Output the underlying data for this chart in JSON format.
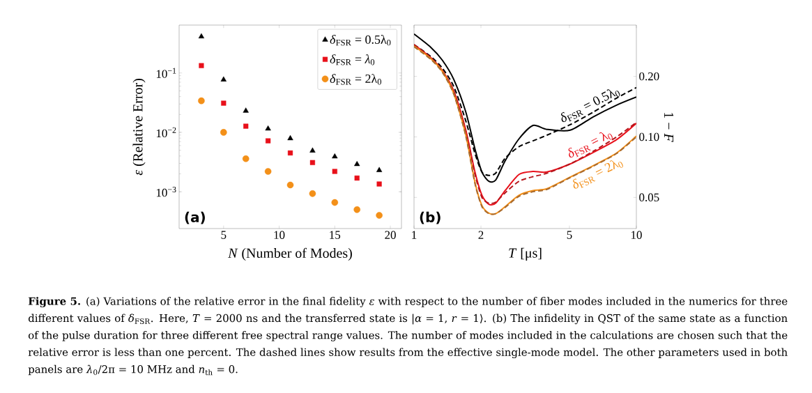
{
  "chart_data": [
    {
      "type": "scatter",
      "title": "(a)",
      "xlabel": "*N* (Number of Modes)",
      "ylabel": "*ε* (Relative Error)",
      "log": "y",
      "legend": "top right",
      "x": [
        3,
        5,
        7,
        9,
        11,
        13,
        15,
        17,
        19
      ],
      "xlim": [
        1,
        21
      ],
      "xticks": [
        5,
        10,
        15,
        20
      ],
      "ylim": [
        0.00024,
        0.64
      ],
      "yticks": [
        {
          "value": 0.001,
          "label": "10$^{−3}$"
        },
        {
          "value": 0.01,
          "label": "10$^{−2}$"
        },
        {
          "value": 0.1,
          "label": "10$^{−1}$"
        }
      ],
      "series": [
        {
          "name": "*δ*$_{FSR}$ = 0.5λ$_{0}$",
          "color": "#000000",
          "marker": "triangle",
          "values": [
            0.41,
            0.077,
            0.023,
            0.0115,
            0.0079,
            0.0049,
            0.0039,
            0.0029,
            0.0023
          ]
        },
        {
          "name": "*δ*$_{FSR}$ = *λ*$_{0}$",
          "color": "#e8101a",
          "marker": "square",
          "values": [
            0.133,
            0.031,
            0.0127,
            0.0072,
            0.0045,
            0.0031,
            0.0022,
            0.0017,
            0.00135
          ]
        },
        {
          "name": "*δ*$_{FSR}$ = 2λ$_{0}$",
          "color": "#f39019",
          "marker": "circle",
          "values": [
            0.034,
            0.01,
            0.0036,
            0.0022,
            0.0013,
            0.00093,
            0.00066,
            0.0005,
            0.0004
          ]
        }
      ],
      "annotations": [
        "**Figure 5.** (a) Variations of the relative error in the final fidelity *ε* with respect to the number of fiber modes included in the numerics for three different values of *δ*$_{FSR}$. Here, *T* = 2000 ns and the transferred state is |*α* = 1, *r* = 1⟩. (b) The infidelity in QST of the same state as a function of the pulse duration for three different free spectral range values. The number of modes included in the calculations are chosen such that the relative error is less than one percent. The dashed lines show results from the effective single-mode model. The other parameters used in both panels are *λ*$_{0}$/2π = 10 MHz and *n*$_{th}$ = 0."
      ]
    },
    {
      "type": "line",
      "title": "(b)",
      "xlabel": "*T* [μs]",
      "ylabel": "1 − *F*",
      "log": "xy",
      "x": [
        1,
        1.19,
        1.34,
        1.51,
        1.71,
        1.88,
        2.02,
        2.17,
        2.33,
        2.57,
        2.97,
        3.43,
        3.96,
        5.04,
        6.41,
        8.15,
        10
      ],
      "xlim": [
        1,
        10
      ],
      "xticks": [
        1,
        2,
        5,
        10
      ],
      "ylim": [
        0.035,
        0.36
      ],
      "yticks": [
        {
          "value": 0.05,
          "label": "0.05"
        },
        {
          "value": 0.1,
          "label": "0.10"
        },
        {
          "value": 0.2,
          "label": "0.20"
        }
      ],
      "series": [
        {
          "color": "#000000",
          "line_style": "solid",
          "values": [
            0.325,
            0.279,
            0.241,
            0.193,
            0.133,
            0.0871,
            0.0669,
            0.0602,
            0.061,
            0.076,
            0.098,
            0.114,
            0.109,
            0.108,
            0.126,
            0.144,
            0.158
          ]
        },
        {
          "color": "#000000",
          "line_style": "dashed",
          "values": [
            0.288,
            0.251,
            0.22,
            0.178,
            0.12,
            0.0827,
            0.0669,
            0.0643,
            0.066,
            0.0784,
            0.0895,
            0.0956,
            0.102,
            0.115,
            0.133,
            0.156,
            0.176
          ]
        },
        {
          "color": "#e8101a",
          "line_style": "solid",
          "values": [
            0.288,
            0.248,
            0.214,
            0.169,
            0.108,
            0.0669,
            0.0513,
            0.0462,
            0.0468,
            0.0541,
            0.0651,
            0.0673,
            0.0669,
            0.0734,
            0.0838,
            0.0969,
            0.117
          ]
        },
        {
          "color": "#b5161c",
          "line_style": "dashed",
          "values": [
            0.287,
            0.247,
            0.213,
            0.168,
            0.106,
            0.0651,
            0.05,
            0.0468,
            0.0474,
            0.0527,
            0.0602,
            0.0634,
            0.066,
            0.0734,
            0.0849,
            0.1,
            0.118
          ]
        },
        {
          "color": "#f39019",
          "line_style": "solid",
          "values": [
            0.283,
            0.245,
            0.212,
            0.164,
            0.102,
            0.0594,
            0.0456,
            0.0418,
            0.0415,
            0.045,
            0.0513,
            0.0541,
            0.0553,
            0.0631,
            0.072,
            0.0831,
            0.101
          ]
        },
        {
          "color": "#a86a2e",
          "line_style": "dashed",
          "values": [
            0.281,
            0.243,
            0.21,
            0.163,
            0.101,
            0.0586,
            0.045,
            0.0415,
            0.0415,
            0.0446,
            0.0507,
            0.0534,
            0.0548,
            0.0628,
            0.0716,
            0.0827,
            0.1
          ]
        }
      ],
      "annotations": [
        "*δ*$_{FSR}$ = 0.5λ$_{0}$",
        "*δ*$_{FSR}$ = λ$_{0}$",
        "*δ*$_{FSR}$ = 2λ$_{0}$"
      ]
    }
  ]
}
